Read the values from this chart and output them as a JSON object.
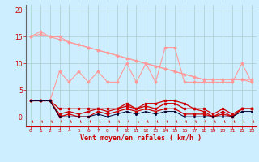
{
  "x": [
    0,
    1,
    2,
    3,
    4,
    5,
    6,
    7,
    8,
    9,
    10,
    11,
    12,
    13,
    14,
    15,
    16,
    17,
    18,
    19,
    20,
    21,
    22,
    23
  ],
  "line_light1": [
    15.0,
    16.0,
    15.0,
    15.0,
    14.0,
    13.5,
    13.0,
    12.5,
    12.0,
    11.5,
    11.0,
    10.5,
    10.0,
    9.5,
    9.0,
    8.5,
    8.0,
    7.5,
    7.0,
    7.0,
    7.0,
    7.0,
    7.0,
    7.0
  ],
  "line_light2": [
    15.0,
    15.5,
    15.0,
    14.5,
    14.0,
    13.5,
    13.0,
    12.5,
    12.0,
    11.5,
    11.0,
    10.5,
    10.0,
    9.5,
    9.0,
    8.5,
    8.0,
    7.5,
    7.0,
    7.0,
    7.0,
    7.0,
    7.0,
    6.5
  ],
  "line_light3": [
    3.0,
    3.0,
    3.0,
    8.5,
    6.5,
    8.5,
    6.5,
    8.5,
    6.5,
    6.5,
    10.0,
    6.5,
    10.0,
    6.5,
    13.0,
    13.0,
    6.5,
    6.5,
    6.5,
    6.5,
    6.5,
    6.5,
    10.0,
    6.5
  ],
  "line_dark1": [
    3.0,
    3.0,
    3.0,
    1.5,
    1.5,
    1.5,
    1.5,
    1.5,
    1.5,
    1.5,
    2.5,
    1.5,
    2.5,
    2.5,
    3.0,
    3.0,
    2.5,
    1.5,
    1.5,
    0.5,
    1.5,
    0.5,
    1.5,
    1.5
  ],
  "line_dark2": [
    3.0,
    3.0,
    3.0,
    0.5,
    1.0,
    0.5,
    1.0,
    1.5,
    1.0,
    1.5,
    2.0,
    1.5,
    2.0,
    1.5,
    2.5,
    2.5,
    1.5,
    1.5,
    1.0,
    0.0,
    1.0,
    0.0,
    1.5,
    1.5
  ],
  "line_dark3": [
    3.0,
    3.0,
    3.0,
    0.0,
    0.5,
    0.0,
    0.0,
    1.0,
    0.5,
    1.0,
    1.5,
    1.0,
    1.5,
    1.0,
    1.5,
    1.5,
    0.5,
    0.5,
    0.5,
    0.0,
    0.5,
    0.0,
    1.5,
    1.5
  ],
  "line_black": [
    3.0,
    3.0,
    3.0,
    0.0,
    0.0,
    0.0,
    0.0,
    0.5,
    0.0,
    0.5,
    1.0,
    0.5,
    1.0,
    0.5,
    1.0,
    1.0,
    0.0,
    0.0,
    0.0,
    0.0,
    0.0,
    0.0,
    1.0,
    1.0
  ],
  "bg_color": "#cceeff",
  "grid_color": "#aacccc",
  "line_color_dark": "#cc0000",
  "line_color_light": "#ff9999",
  "line_color_black": "#000033",
  "xlabel": "Vent moyen/en rafales ( km/h )",
  "ylim": [
    -1.8,
    21
  ],
  "xlim": [
    -0.5,
    23.5
  ],
  "yticks": [
    0,
    5,
    10,
    15,
    20
  ]
}
